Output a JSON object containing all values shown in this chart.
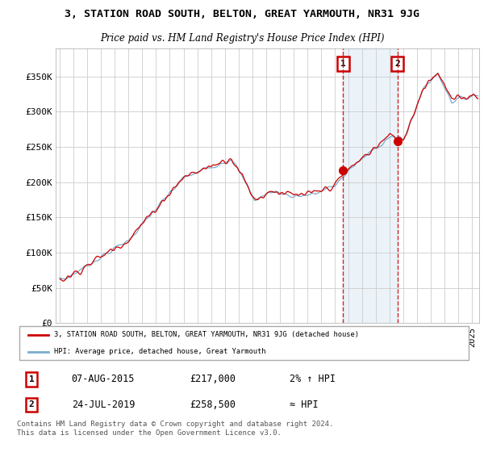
{
  "title": "3, STATION ROAD SOUTH, BELTON, GREAT YARMOUTH, NR31 9JG",
  "subtitle": "Price paid vs. HM Land Registry's House Price Index (HPI)",
  "ylabel_ticks": [
    "£0",
    "£50K",
    "£100K",
    "£150K",
    "£200K",
    "£250K",
    "£300K",
    "£350K"
  ],
  "ytick_values": [
    0,
    50000,
    100000,
    150000,
    200000,
    250000,
    300000,
    350000
  ],
  "ylim": [
    0,
    390000
  ],
  "xlim_start": 1994.7,
  "xlim_end": 2025.5,
  "legend_line1": "3, STATION ROAD SOUTH, BELTON, GREAT YARMOUTH, NR31 9JG (detached house)",
  "legend_line2": "HPI: Average price, detached house, Great Yarmouth",
  "marker1_label": "1",
  "marker1_date": "07-AUG-2015",
  "marker1_price": "£217,000",
  "marker1_hpi": "2% ↑ HPI",
  "marker2_label": "2",
  "marker2_date": "24-JUL-2019",
  "marker2_price": "£258,500",
  "marker2_hpi": "≈ HPI",
  "footer": "Contains HM Land Registry data © Crown copyright and database right 2024.\nThis data is licensed under the Open Government Licence v3.0.",
  "price_color": "#cc0000",
  "hpi_color": "#7aaccc",
  "marker1_x": 2015.6,
  "marker1_y": 217000,
  "marker2_x": 2019.56,
  "marker2_y": 258500,
  "vline1_x": 2015.6,
  "vline2_x": 2019.56,
  "background_color": "#ffffff",
  "grid_color": "#cccccc",
  "shade_color": "#c8dff0"
}
